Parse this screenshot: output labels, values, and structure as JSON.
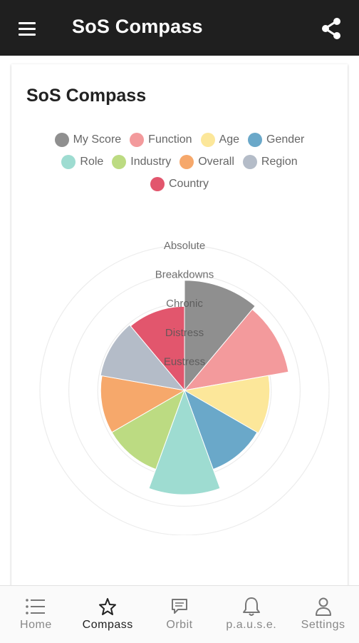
{
  "app": {
    "title": "SoS Compass"
  },
  "card": {
    "title": "SoS Compass"
  },
  "legend": [
    {
      "label": "My Score",
      "color": "#8f8f8f"
    },
    {
      "label": "Function",
      "color": "#f39a9c"
    },
    {
      "label": "Age",
      "color": "#fce79a"
    },
    {
      "label": "Gender",
      "color": "#6aa8c9"
    },
    {
      "label": "Role",
      "color": "#9edcd1"
    },
    {
      "label": "Industry",
      "color": "#bcdb82"
    },
    {
      "label": "Overall",
      "color": "#f6a86b"
    },
    {
      "label": "Region",
      "color": "#b4bcc8"
    },
    {
      "label": "Country",
      "color": "#e2566d"
    }
  ],
  "chart_data": {
    "type": "polar-area",
    "scale_labels": [
      "Eustress",
      "Distress",
      "Chronic",
      "Breakdowns",
      "Absolute"
    ],
    "r_max": 5,
    "series": [
      {
        "name": "My Score",
        "value": 3.8
      },
      {
        "name": "Function",
        "value": 3.65
      },
      {
        "name": "Age",
        "value": 2.95
      },
      {
        "name": "Gender",
        "value": 2.9
      },
      {
        "name": "Role",
        "value": 3.6
      },
      {
        "name": "Industry",
        "value": 2.9
      },
      {
        "name": "Overall",
        "value": 2.9
      },
      {
        "name": "Region",
        "value": 2.95
      },
      {
        "name": "Country",
        "value": 2.9
      }
    ]
  },
  "nav": [
    {
      "label": "Home",
      "icon": "list-icon",
      "active": false
    },
    {
      "label": "Compass",
      "icon": "star-icon",
      "active": true
    },
    {
      "label": "Orbit",
      "icon": "message-icon",
      "active": false
    },
    {
      "label": "p.a.u.s.e.",
      "icon": "bell-icon",
      "active": false
    },
    {
      "label": "Settings",
      "icon": "person-icon",
      "active": false
    }
  ]
}
